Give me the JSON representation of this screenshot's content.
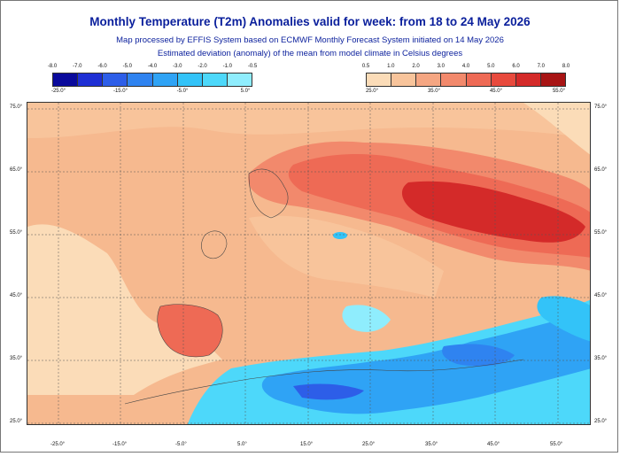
{
  "title": "Monthly Temperature (T2m) Anomalies valid for week: from 18 to 24 May 2026",
  "subtitle": "Map processed by EFFIS System based on ECMWF Monthly Forecast System initiated on 14 May 2026",
  "description": "Estimated deviation (anomaly) of the mean from model climate in Celsius degrees",
  "legend_cold": {
    "labels": [
      "-8.0",
      "-7.0",
      "-6.0",
      "-5.0",
      "-4.0",
      "-3.0",
      "-2.0",
      "-1.0",
      "-0.5"
    ],
    "colors": [
      "#0a0a9c",
      "#1e2fd4",
      "#2d5ee8",
      "#2f83f0",
      "#2fa3f5",
      "#33c3f8",
      "#4dd8fa",
      "#8fedfd"
    ]
  },
  "legend_warm": {
    "labels": [
      "0.5",
      "1.0",
      "2.0",
      "3.0",
      "4.0",
      "5.0",
      "6.0",
      "7.0",
      "8.0"
    ],
    "colors": [
      "#fbdcb8",
      "#f8c49b",
      "#f5a682",
      "#f2896c",
      "#ee6a55",
      "#e84a3d",
      "#d42a29",
      "#a81414"
    ]
  },
  "lon_labels": [
    "-25.0°",
    "-15.0°",
    "-5.0°",
    "5.0°",
    "15.0°",
    "25.0°",
    "35.0°",
    "45.0°",
    "55.0°"
  ],
  "lat_labels": [
    "75.0°",
    "65.0°",
    "55.0°",
    "45.0°",
    "35.0°",
    "25.0°"
  ],
  "colors": {
    "title": "#0a1f9c",
    "background_anomaly": "#f6b98f",
    "grid": "#555555"
  }
}
